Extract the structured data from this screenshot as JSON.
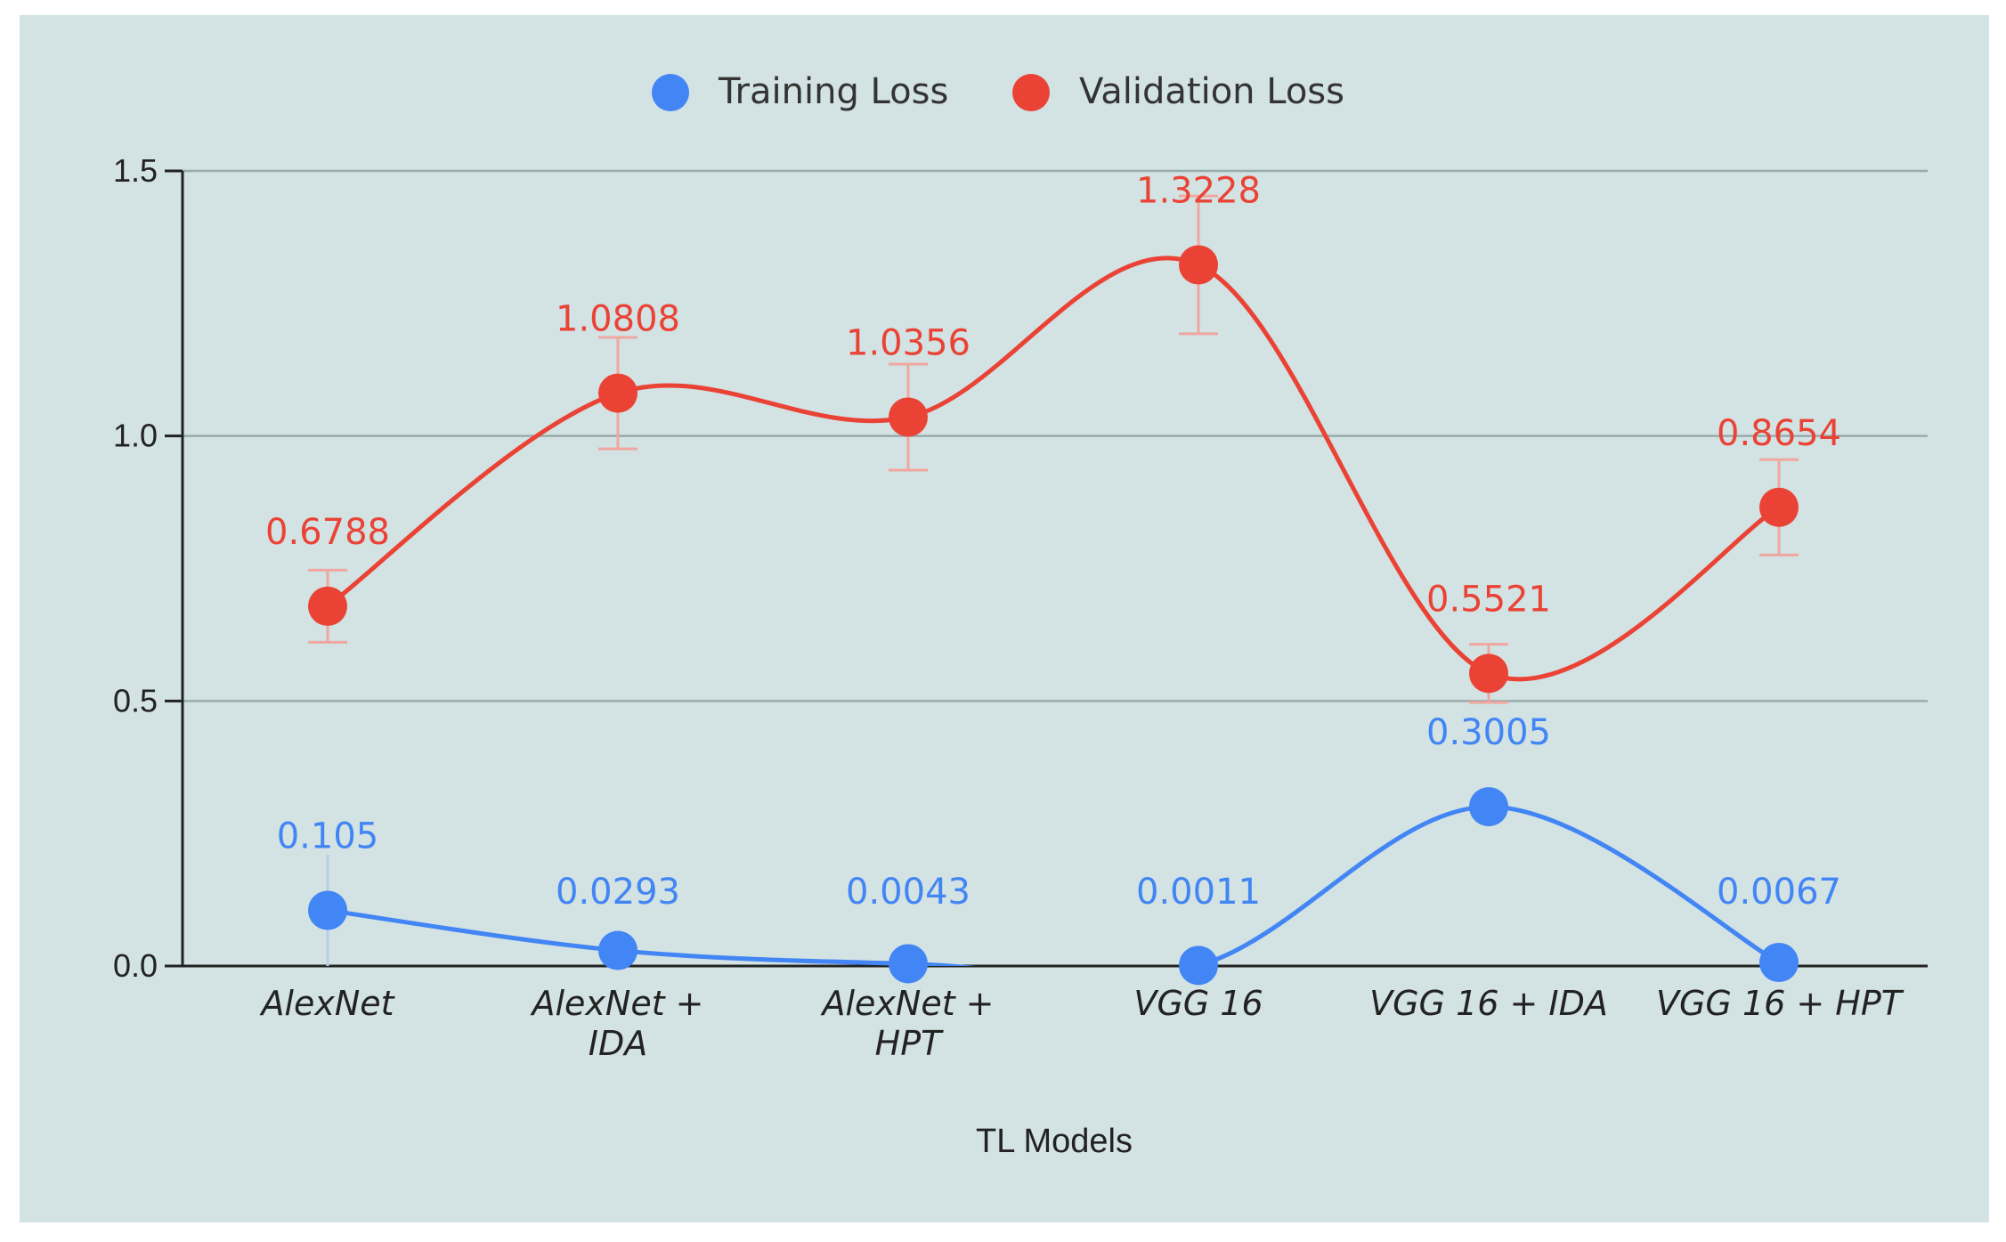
{
  "chart_data": {
    "type": "line",
    "title": "",
    "xlabel": "TL Models",
    "ylabel": "",
    "ylim": [
      0,
      1.5
    ],
    "yticks": [
      "0.0",
      "0.5",
      "1.0",
      "1.5"
    ],
    "grid": true,
    "legend_position": "top-center",
    "categories": [
      [
        "AlexNet"
      ],
      [
        "AlexNet +",
        "IDA"
      ],
      [
        "AlexNet +",
        "HPT"
      ],
      [
        "VGG 16"
      ],
      [
        "VGG 16 + IDA"
      ],
      [
        "VGG 16 + HPT"
      ]
    ],
    "series": [
      {
        "name": "Training Loss",
        "color": "#4285f4",
        "values": [
          0.105,
          0.0293,
          0.0043,
          0.0011,
          0.3005,
          0.0067
        ],
        "labels": [
          "0.105",
          "0.0293",
          "0.0043",
          "0.0011",
          "0.3005",
          "0.0067"
        ],
        "error": [
          0.105,
          0.03,
          0.01,
          0.01,
          0.035,
          0.01
        ]
      },
      {
        "name": "Validation Loss",
        "color": "#ea4335",
        "values": [
          0.6788,
          1.0808,
          1.0356,
          1.3228,
          0.5521,
          0.8654
        ],
        "labels": [
          "0.6788",
          "1.0808",
          "1.0356",
          "1.3228",
          "0.5521",
          "0.8654"
        ],
        "error": [
          0.068,
          0.105,
          0.1,
          0.13,
          0.055,
          0.09
        ]
      }
    ]
  }
}
